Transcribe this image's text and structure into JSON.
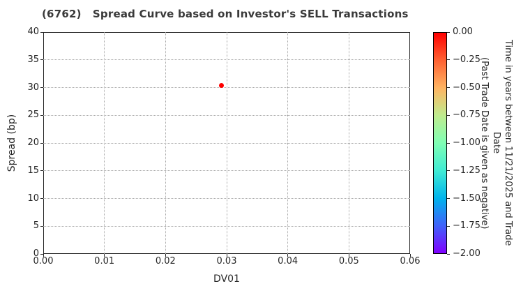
{
  "window_title": "(6762)   Spread Curve based on Investor's SELL Transactions",
  "chart_data": {
    "type": "scatter",
    "title": "(6762)   Spread Curve based on Investor's SELL Transactions",
    "xlabel": "DV01",
    "ylabel": "Spread (bp)",
    "xlim": [
      0.0,
      0.06
    ],
    "ylim": [
      0,
      40
    ],
    "grid": "dotted",
    "x_ticks": [
      {
        "value": 0.0,
        "label": "0.00"
      },
      {
        "value": 0.01,
        "label": "0.01"
      },
      {
        "value": 0.02,
        "label": "0.02"
      },
      {
        "value": 0.03,
        "label": "0.03"
      },
      {
        "value": 0.04,
        "label": "0.04"
      },
      {
        "value": 0.05,
        "label": "0.05"
      },
      {
        "value": 0.06,
        "label": "0.06"
      }
    ],
    "y_ticks": [
      {
        "value": 0,
        "label": "0"
      },
      {
        "value": 5,
        "label": "5"
      },
      {
        "value": 10,
        "label": "10"
      },
      {
        "value": 15,
        "label": "15"
      },
      {
        "value": 20,
        "label": "20"
      },
      {
        "value": 25,
        "label": "25"
      },
      {
        "value": 30,
        "label": "30"
      },
      {
        "value": 35,
        "label": "35"
      },
      {
        "value": 40,
        "label": "40"
      }
    ],
    "points": [
      {
        "x": 0.0292,
        "y": 30.4,
        "color_value": 0.0,
        "color": "#ff0000"
      }
    ],
    "colorbar": {
      "label": "Time in years between 11/21/2025 and Trade Date\n(Past Trade Date is given as negative)",
      "range_top": 0.0,
      "range_bottom": -2.0,
      "colormap": "rainbow",
      "ticks": [
        {
          "value": 0.0,
          "label": "0.00"
        },
        {
          "value": -0.25,
          "label": "−0.25"
        },
        {
          "value": -0.5,
          "label": "−0.50"
        },
        {
          "value": -0.75,
          "label": "−0.75"
        },
        {
          "value": -1.0,
          "label": "−1.00"
        },
        {
          "value": -1.25,
          "label": "−1.25"
        },
        {
          "value": -1.5,
          "label": "−1.50"
        },
        {
          "value": -1.75,
          "label": "−1.75"
        },
        {
          "value": -2.0,
          "label": "−2.00"
        }
      ],
      "gradient_stops": [
        {
          "pos": 0,
          "color": "#ff0000"
        },
        {
          "pos": 12.5,
          "color": "#ff6232"
        },
        {
          "pos": 25,
          "color": "#ffb462"
        },
        {
          "pos": 37.5,
          "color": "#bfec8e"
        },
        {
          "pos": 50,
          "color": "#80ffb4"
        },
        {
          "pos": 62.5,
          "color": "#40ecd4"
        },
        {
          "pos": 75,
          "color": "#00b4ec"
        },
        {
          "pos": 87.5,
          "color": "#4062fa"
        },
        {
          "pos": 100,
          "color": "#8000ff"
        }
      ]
    }
  },
  "colors": {
    "marker": "#ff0000",
    "grid": "#a8a8a8",
    "axis": "#262626",
    "title_text": "#3a3a3a",
    "background": "#ffffff"
  }
}
